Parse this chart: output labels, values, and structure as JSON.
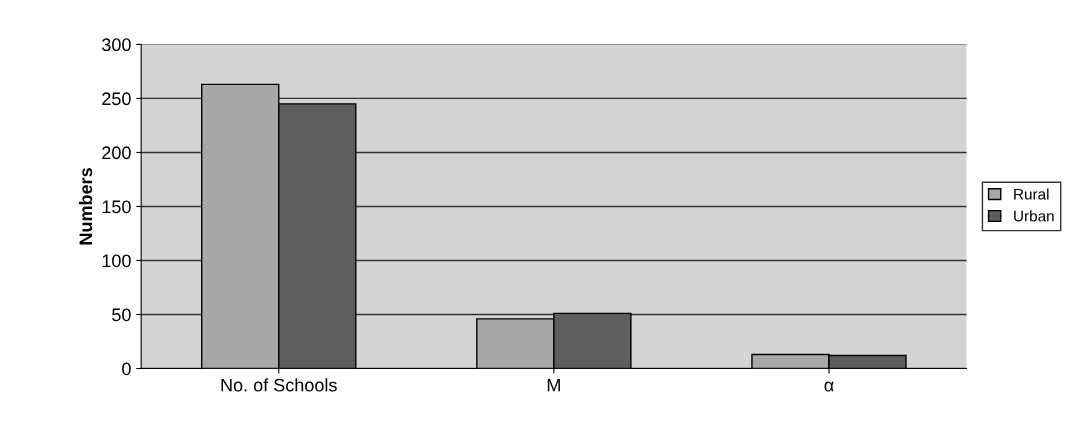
{
  "chart_data": {
    "type": "bar",
    "ylabel": "Numbers",
    "categories": [
      "No. of Schools",
      "M",
      "α"
    ],
    "series": [
      {
        "name": "Rural",
        "color": "#a8a8a8",
        "values": [
          263,
          46,
          13
        ]
      },
      {
        "name": "Urban",
        "color": "#5e5e5e",
        "values": [
          245,
          51,
          12
        ]
      }
    ],
    "ylim": [
      0,
      300
    ],
    "yticks": [
      0,
      50,
      100,
      150,
      200,
      250,
      300
    ],
    "grid": "y",
    "legend": "right"
  }
}
